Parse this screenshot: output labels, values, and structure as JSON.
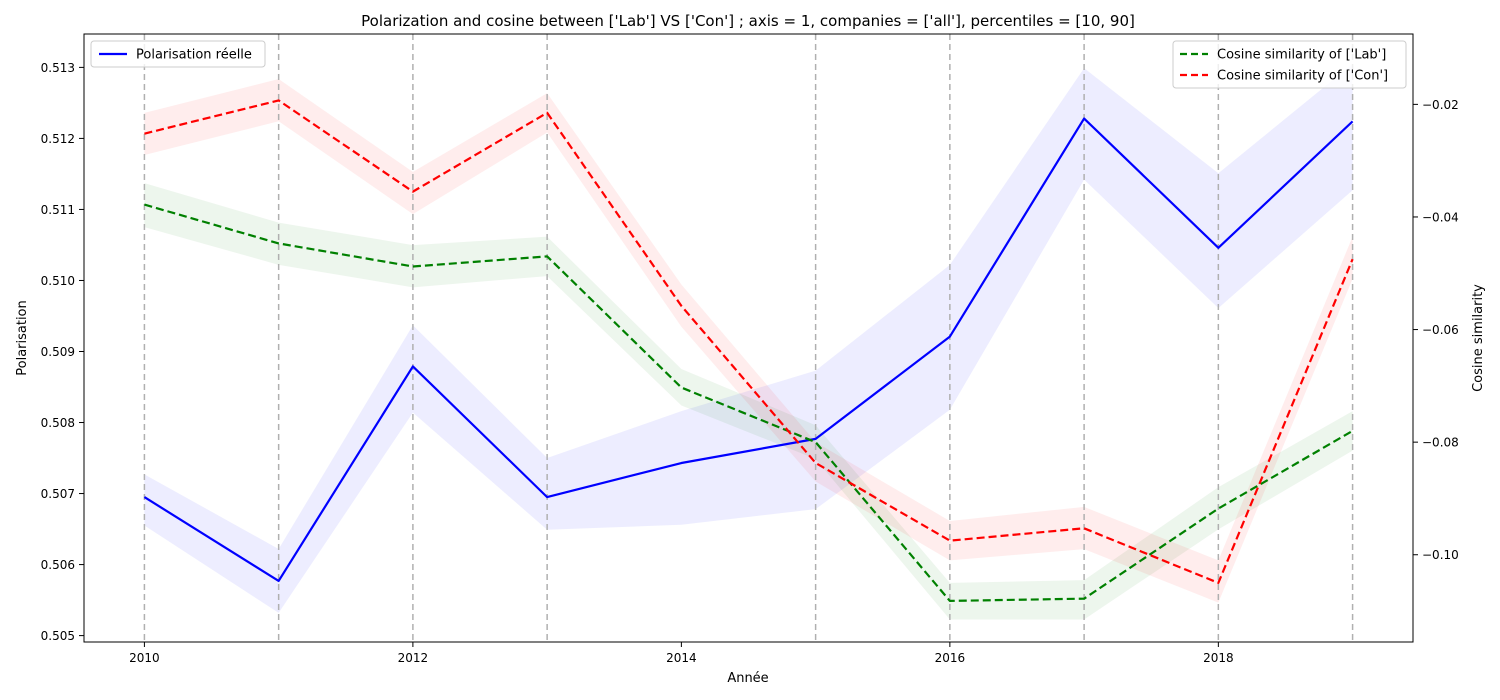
{
  "chart_data": {
    "type": "line",
    "title": "Polarization and cosine between ['Lab'] VS ['Con'] ; axis = 1, companies = ['all'], percentiles = [10, 90]",
    "xlabel": "Année",
    "ylabel_left": "Polarisation",
    "ylabel_right": "Cosine similarity",
    "x": [
      2010,
      2011,
      2012,
      2013,
      2014,
      2015,
      2016,
      2017,
      2018,
      2019
    ],
    "xlim": [
      2009.55,
      2019.45
    ],
    "ylim_left": [
      0.50491,
      0.51347
    ],
    "ylim_right": [
      -0.1155,
      -0.0075
    ],
    "x_ticks": [
      "2010",
      "2012",
      "2014",
      "2016",
      "2018"
    ],
    "y_ticks_left": [
      "0.505",
      "0.506",
      "0.507",
      "0.508",
      "0.509",
      "0.510",
      "0.511",
      "0.512",
      "0.513"
    ],
    "y_ticks_right": [
      "−0.02",
      "−0.04",
      "−0.06",
      "−0.08",
      "−0.10"
    ],
    "vertical_gridlines": [
      2010,
      2011,
      2012,
      2013,
      2015,
      2016,
      2017,
      2018,
      2019
    ],
    "series": [
      {
        "name": "Polarisation réelle",
        "axis": "left",
        "color": "#0000ff",
        "style": "solid",
        "values": [
          0.50695,
          0.50577,
          0.50879,
          0.50695,
          0.50743,
          0.50777,
          0.50921,
          0.51228,
          0.51046,
          0.51224
        ],
        "lower": [
          0.50655,
          0.50532,
          0.50814,
          0.50649,
          0.50656,
          0.50678,
          0.50818,
          0.51142,
          0.50961,
          0.51127
        ],
        "upper": [
          0.50727,
          0.50622,
          0.50937,
          0.5075,
          0.50816,
          0.50873,
          0.51022,
          0.51299,
          0.51151,
          0.51305
        ]
      },
      {
        "name": "Cosine similarity of ['Lab']",
        "axis": "right",
        "color": "#008000",
        "style": "dashed",
        "values": [
          -0.0378,
          -0.0447,
          -0.0488,
          -0.047,
          -0.0703,
          -0.08,
          -0.1082,
          -0.1078,
          -0.0918,
          -0.078
        ],
        "lower": [
          -0.0418,
          -0.0485,
          -0.0525,
          -0.0505,
          -0.0735,
          -0.083,
          -0.1115,
          -0.1115,
          -0.0955,
          -0.0815
        ],
        "upper": [
          -0.034,
          -0.041,
          -0.045,
          -0.0435,
          -0.067,
          -0.077,
          -0.105,
          -0.1045,
          -0.088,
          -0.0745
        ]
      },
      {
        "name": "Cosine similarity of ['Con']",
        "axis": "right",
        "color": "#ff0000",
        "style": "dashed",
        "values": [
          -0.0252,
          -0.0193,
          -0.0355,
          -0.0215,
          -0.0558,
          -0.0837,
          -0.0975,
          -0.0953,
          -0.105,
          -0.0475
        ],
        "lower": [
          -0.029,
          -0.023,
          -0.0395,
          -0.025,
          -0.0595,
          -0.087,
          -0.101,
          -0.099,
          -0.1085,
          -0.051
        ],
        "upper": [
          -0.0215,
          -0.0155,
          -0.032,
          -0.018,
          -0.052,
          -0.08,
          -0.094,
          -0.0915,
          -0.101,
          -0.0435
        ]
      }
    ],
    "legend_left": {
      "placement": "top-left",
      "entries": [
        "Polarisation réelle"
      ]
    },
    "legend_right": {
      "placement": "top-right",
      "entries": [
        "Cosine similarity of ['Lab']",
        "Cosine similarity of ['Con']"
      ]
    },
    "grid": "vertical dashed at x values"
  }
}
